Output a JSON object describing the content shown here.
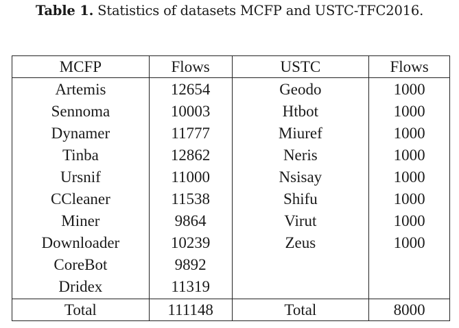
{
  "caption": {
    "label": "Table 1.",
    "text": "Statistics of datasets MCFP and USTC-TFC2016."
  },
  "table": {
    "headers": [
      "MCFP",
      "Flows",
      "USTC",
      "Flows"
    ],
    "rows": [
      [
        "Artemis",
        "12654",
        "Geodo",
        "1000"
      ],
      [
        "Sennoma",
        "10003",
        "Htbot",
        "1000"
      ],
      [
        "Dynamer",
        "11777",
        "Miuref",
        "1000"
      ],
      [
        "Tinba",
        "12862",
        "Neris",
        "1000"
      ],
      [
        "Ursnif",
        "11000",
        "Nsisay",
        "1000"
      ],
      [
        "CCleaner",
        "11538",
        "Shifu",
        "1000"
      ],
      [
        "Miner",
        "9864",
        "Virut",
        "1000"
      ],
      [
        "Downloader",
        "10239",
        "Zeus",
        "1000"
      ],
      [
        "CoreBot",
        "9892",
        "",
        ""
      ],
      [
        "Dridex",
        "11319",
        "",
        ""
      ]
    ],
    "total": [
      "Total",
      "111148",
      "Total",
      "8000"
    ]
  }
}
